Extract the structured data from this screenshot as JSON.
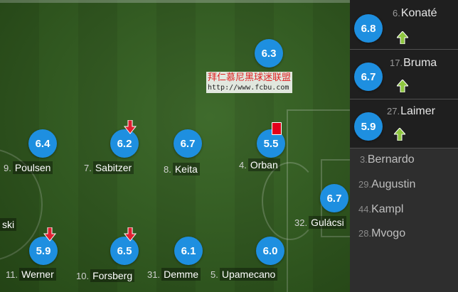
{
  "pitch_players": [
    {
      "key": "6.3",
      "rating": "6.3"
    },
    {
      "key": "poulsen",
      "rating": "6.4",
      "number": "9.",
      "name": "Poulsen"
    },
    {
      "key": "sabitzer",
      "rating": "6.2",
      "number": "7.",
      "name": "Sabitzer"
    },
    {
      "key": "keita",
      "rating": "6.7",
      "number": "8.",
      "name": "Keita"
    },
    {
      "key": "orban",
      "rating": "5.5",
      "number": "4.",
      "name": "Orban"
    },
    {
      "key": "gulacsi",
      "rating": "6.7",
      "number": "32.",
      "name": "Gulácsi"
    },
    {
      "key": "werner",
      "rating": "5.9",
      "number": "11.",
      "name": "Werner"
    },
    {
      "key": "forsberg",
      "rating": "6.5",
      "number": "10.",
      "name": "Forsberg"
    },
    {
      "key": "demme",
      "rating": "6.1",
      "number": "31.",
      "name": "Demme"
    },
    {
      "key": "upamecano",
      "rating": "6.0",
      "number": "5.",
      "name": "Upamecano"
    }
  ],
  "partial_label": "ski",
  "watermark": {
    "line1": "拜仁慕尼黑球迷联盟",
    "line2": "http://www.fcbu.com"
  },
  "substitutes": [
    {
      "rating": "6.8",
      "number": "6.",
      "name": "Konaté"
    },
    {
      "rating": "6.7",
      "number": "17.",
      "name": "Bruma"
    },
    {
      "rating": "5.9",
      "number": "27.",
      "name": "Laimer"
    }
  ],
  "bench": [
    {
      "number": "3.",
      "name": "Bernardo"
    },
    {
      "number": "29.",
      "name": "Augustin"
    },
    {
      "number": "44.",
      "name": "Kampl"
    },
    {
      "number": "28.",
      "name": "Mvogo"
    }
  ],
  "colors": {
    "rating_bg": "#1e8fe0",
    "sub_in_arrow": "#8ec63f",
    "sub_out_arrow": "#e02030",
    "red_card": "#e3001b"
  }
}
